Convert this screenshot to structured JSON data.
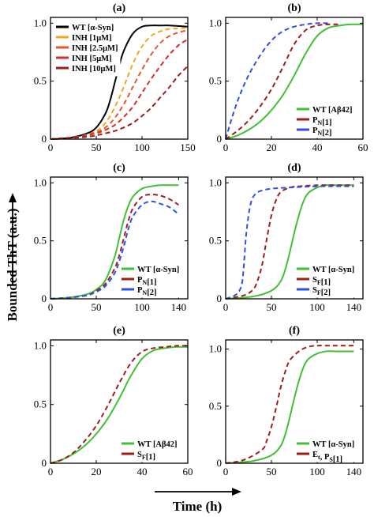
{
  "figure": {
    "ylabel": "Bounded ThT (a.u.)",
    "xlabel": "Time (h)"
  },
  "chart_data": [
    {
      "type": "line",
      "title": "(a)",
      "xlim": [
        0,
        150
      ],
      "ylim": [
        0,
        1.05
      ],
      "xticks": [
        0,
        50,
        100,
        150
      ],
      "yticks": [
        0,
        0.5,
        1.0
      ],
      "ytick_labels": [
        "0",
        "0.5",
        "1.0"
      ],
      "legend": "top-left",
      "series": [
        {
          "name": "WT [α-Syn]",
          "color": "#000000",
          "dash": false,
          "x": [
            0,
            20,
            40,
            50,
            60,
            65,
            70,
            75,
            80,
            90,
            100,
            110,
            120,
            130,
            150
          ],
          "y": [
            0.0,
            0.01,
            0.05,
            0.1,
            0.22,
            0.33,
            0.48,
            0.63,
            0.76,
            0.91,
            0.97,
            0.98,
            0.98,
            0.98,
            0.97
          ]
        },
        {
          "name": "INH [1μM]",
          "color": "#f2a623",
          "dash": true,
          "x": [
            0,
            30,
            50,
            60,
            70,
            80,
            90,
            100,
            110,
            120,
            130,
            150
          ],
          "y": [
            0.0,
            0.02,
            0.07,
            0.14,
            0.27,
            0.45,
            0.65,
            0.8,
            0.89,
            0.93,
            0.95,
            0.96
          ]
        },
        {
          "name": "INH [2.5μM]",
          "color": "#e8552e",
          "dash": true,
          "x": [
            0,
            30,
            50,
            60,
            70,
            80,
            90,
            100,
            110,
            120,
            130,
            140,
            150
          ],
          "y": [
            0.0,
            0.02,
            0.06,
            0.1,
            0.18,
            0.3,
            0.45,
            0.6,
            0.73,
            0.83,
            0.89,
            0.92,
            0.94
          ]
        },
        {
          "name": "INH [5μM]",
          "color": "#d42f2b",
          "dash": true,
          "x": [
            0,
            30,
            50,
            60,
            70,
            80,
            90,
            100,
            110,
            120,
            130,
            140,
            150
          ],
          "y": [
            0.0,
            0.02,
            0.05,
            0.08,
            0.12,
            0.19,
            0.28,
            0.4,
            0.52,
            0.63,
            0.73,
            0.81,
            0.86
          ]
        },
        {
          "name": "INH [10μM]",
          "color": "#9e1e1e",
          "dash": true,
          "x": [
            0,
            40,
            60,
            70,
            80,
            90,
            100,
            110,
            120,
            130,
            140,
            150
          ],
          "y": [
            0.0,
            0.02,
            0.05,
            0.07,
            0.1,
            0.14,
            0.2,
            0.27,
            0.36,
            0.45,
            0.55,
            0.63
          ]
        }
      ]
    },
    {
      "type": "line",
      "title": "(b)",
      "xlim": [
        0,
        60
      ],
      "ylim": [
        0,
        1.05
      ],
      "xticks": [
        0,
        20,
        40,
        60
      ],
      "yticks": [
        0,
        0.5,
        1.0
      ],
      "ytick_labels": [
        "0",
        "0.5",
        "1.0"
      ],
      "legend": "bottom-right",
      "series": [
        {
          "name": "WT [Aβ42]",
          "color": "#3fc133",
          "dash": false,
          "x": [
            0,
            5,
            10,
            15,
            20,
            25,
            30,
            35,
            40,
            45,
            50,
            55,
            60
          ],
          "y": [
            0.0,
            0.03,
            0.08,
            0.15,
            0.25,
            0.38,
            0.55,
            0.74,
            0.89,
            0.96,
            0.98,
            0.99,
            0.99
          ]
        },
        {
          "name": "P_N[1]",
          "color": "#9e1e1e",
          "dash": true,
          "x": [
            0,
            5,
            10,
            15,
            20,
            25,
            30,
            35,
            40,
            45,
            50
          ],
          "y": [
            0.0,
            0.07,
            0.16,
            0.28,
            0.43,
            0.62,
            0.82,
            0.94,
            0.98,
            0.99,
            0.99
          ]
        },
        {
          "name": "P_N[2]",
          "color": "#2f4fe0",
          "dash": true,
          "x": [
            0,
            3,
            6,
            10,
            15,
            20,
            25,
            30,
            35,
            40,
            45
          ],
          "y": [
            0.0,
            0.2,
            0.37,
            0.55,
            0.72,
            0.85,
            0.93,
            0.97,
            0.99,
            1.0,
            1.0
          ]
        }
      ]
    },
    {
      "type": "line",
      "title": "(c)",
      "xlim": [
        0,
        150
      ],
      "ylim": [
        0,
        1.05
      ],
      "xticks": [
        0,
        50,
        100,
        140
      ],
      "yticks": [
        0,
        0.5,
        1.0
      ],
      "ytick_labels": [
        "0",
        "0.5",
        "1.0"
      ],
      "legend": "bottom-right",
      "series": [
        {
          "name": "WT [α-Syn]",
          "color": "#3fc133",
          "dash": false,
          "x": [
            0,
            20,
            40,
            50,
            60,
            70,
            75,
            80,
            85,
            90,
            100,
            110,
            120,
            130,
            140
          ],
          "y": [
            0.0,
            0.01,
            0.04,
            0.08,
            0.16,
            0.36,
            0.52,
            0.68,
            0.8,
            0.88,
            0.95,
            0.97,
            0.98,
            0.98,
            0.98
          ]
        },
        {
          "name": "P_N[1]",
          "color": "#9e1e1e",
          "dash": true,
          "x": [
            0,
            20,
            40,
            50,
            60,
            70,
            75,
            80,
            85,
            90,
            100,
            110,
            120,
            130,
            140
          ],
          "y": [
            0.0,
            0.01,
            0.03,
            0.07,
            0.13,
            0.26,
            0.37,
            0.52,
            0.67,
            0.78,
            0.88,
            0.9,
            0.89,
            0.86,
            0.81
          ]
        },
        {
          "name": "P_N[2]",
          "color": "#2f4fe0",
          "dash": true,
          "x": [
            0,
            20,
            40,
            50,
            60,
            70,
            75,
            80,
            85,
            90,
            100,
            110,
            120,
            130,
            140
          ],
          "y": [
            0.0,
            0.01,
            0.03,
            0.06,
            0.11,
            0.22,
            0.32,
            0.45,
            0.6,
            0.71,
            0.81,
            0.84,
            0.82,
            0.79,
            0.73
          ]
        }
      ]
    },
    {
      "type": "line",
      "title": "(d)",
      "xlim": [
        0,
        150
      ],
      "ylim": [
        0,
        1.05
      ],
      "xticks": [
        0,
        50,
        100,
        140
      ],
      "yticks": [
        0,
        0.5,
        1.0
      ],
      "ytick_labels": [
        "0",
        "0.5",
        "1.0"
      ],
      "legend": "bottom-right",
      "series": [
        {
          "name": "WT [α-Syn]",
          "color": "#3fc133",
          "dash": false,
          "x": [
            0,
            30,
            50,
            60,
            65,
            70,
            75,
            80,
            85,
            90,
            100,
            110,
            120,
            140
          ],
          "y": [
            0.0,
            0.02,
            0.07,
            0.15,
            0.25,
            0.4,
            0.57,
            0.72,
            0.84,
            0.91,
            0.96,
            0.98,
            0.98,
            0.98
          ]
        },
        {
          "name": "S_F[1]",
          "color": "#9e1e1e",
          "dash": true,
          "x": [
            0,
            20,
            30,
            35,
            40,
            45,
            50,
            55,
            60,
            70,
            80,
            100,
            120,
            140
          ],
          "y": [
            0.0,
            0.03,
            0.08,
            0.16,
            0.3,
            0.52,
            0.72,
            0.85,
            0.92,
            0.96,
            0.97,
            0.98,
            0.98,
            0.98
          ]
        },
        {
          "name": "S_F[2]",
          "color": "#2f4fe0",
          "dash": true,
          "x": [
            0,
            10,
            15,
            18,
            20,
            22,
            25,
            28,
            32,
            38,
            50,
            70,
            100,
            140
          ],
          "y": [
            0.0,
            0.03,
            0.07,
            0.14,
            0.3,
            0.52,
            0.72,
            0.84,
            0.9,
            0.93,
            0.95,
            0.96,
            0.97,
            0.97
          ]
        }
      ]
    },
    {
      "type": "line",
      "title": "(e)",
      "xlim": [
        0,
        60
      ],
      "ylim": [
        0,
        1.05
      ],
      "xticks": [
        0,
        20,
        40,
        60
      ],
      "yticks": [
        0,
        0.5,
        1.0
      ],
      "ytick_labels": [
        "0",
        "0.5",
        "1.0"
      ],
      "legend": "bottom-right",
      "series": [
        {
          "name": "WT [Aβ42]",
          "color": "#3fc133",
          "dash": false,
          "x": [
            0,
            5,
            10,
            15,
            20,
            25,
            30,
            35,
            40,
            45,
            50,
            55,
            60
          ],
          "y": [
            0.0,
            0.03,
            0.08,
            0.15,
            0.25,
            0.38,
            0.55,
            0.74,
            0.89,
            0.96,
            0.98,
            0.99,
            0.99
          ]
        },
        {
          "name": "S_F[1]",
          "color": "#9e1e1e",
          "dash": true,
          "x": [
            0,
            5,
            10,
            15,
            20,
            25,
            30,
            35,
            40,
            45,
            50,
            55,
            60
          ],
          "y": [
            0.0,
            0.03,
            0.09,
            0.19,
            0.32,
            0.49,
            0.68,
            0.85,
            0.95,
            0.98,
            0.99,
            1.0,
            1.0
          ]
        }
      ]
    },
    {
      "type": "line",
      "title": "(f)",
      "xlim": [
        0,
        150
      ],
      "ylim": [
        0,
        1.08
      ],
      "xticks": [
        0,
        50,
        100,
        140
      ],
      "yticks": [
        0,
        0.5,
        1.0
      ],
      "ytick_labels": [
        "0",
        "0.5",
        "1.0"
      ],
      "legend": "bottom-right",
      "series": [
        {
          "name": "WT [α-Syn]",
          "color": "#3fc133",
          "dash": false,
          "x": [
            0,
            30,
            50,
            60,
            65,
            70,
            75,
            80,
            85,
            90,
            100,
            110,
            120,
            140
          ],
          "y": [
            0.0,
            0.02,
            0.07,
            0.15,
            0.25,
            0.4,
            0.57,
            0.72,
            0.84,
            0.91,
            0.96,
            0.98,
            0.98,
            0.98
          ]
        },
        {
          "name": "E_t, P_S[1]",
          "color": "#9e1e1e",
          "dash": true,
          "x": [
            0,
            20,
            40,
            45,
            50,
            55,
            60,
            65,
            70,
            80,
            90,
            100,
            110,
            140
          ],
          "y": [
            0.0,
            0.03,
            0.12,
            0.2,
            0.32,
            0.48,
            0.66,
            0.8,
            0.9,
            0.98,
            1.02,
            1.03,
            1.03,
            1.03
          ]
        }
      ]
    }
  ]
}
